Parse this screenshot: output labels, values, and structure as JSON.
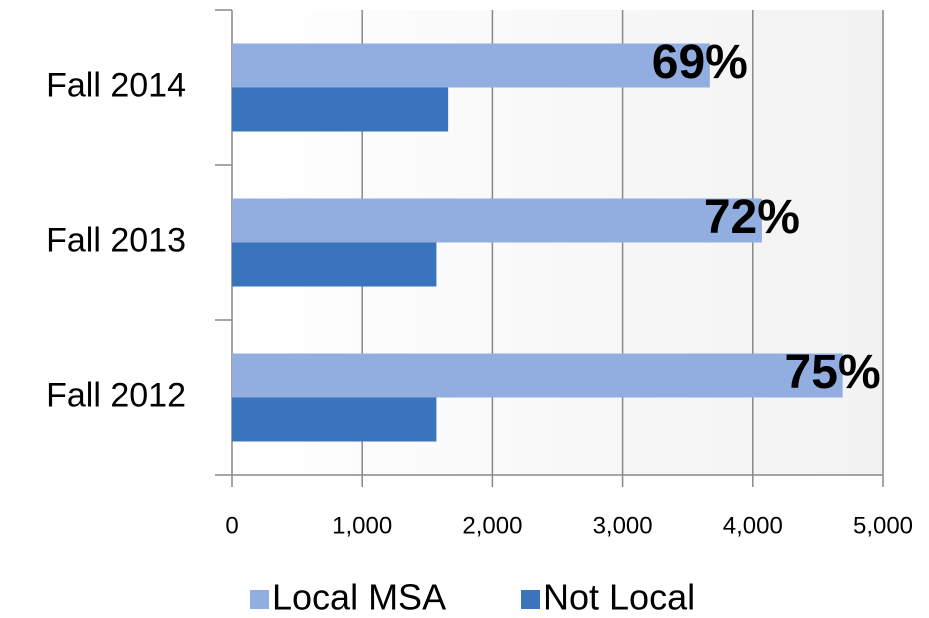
{
  "chart_data": {
    "type": "bar",
    "orientation": "horizontal",
    "categories": [
      "Fall 2014",
      "Fall 2013",
      "Fall 2012"
    ],
    "series": [
      {
        "name": "Local MSA",
        "color": "#92addf",
        "values": [
          3670,
          4070,
          4690
        ]
      },
      {
        "name": "Not Local",
        "color": "#3a74bd",
        "values": [
          1660,
          1570,
          1570
        ]
      }
    ],
    "annotations": [
      "69%",
      "72%",
      "75%"
    ],
    "xlim": [
      0,
      5000
    ],
    "xticks": [
      0,
      {
        "value": 1000,
        "label": "1,000"
      },
      {
        "value": 2000,
        "label": "2,000"
      },
      {
        "value": 3000,
        "label": "3,000"
      },
      {
        "value": 4000,
        "label": "4,000"
      },
      {
        "value": 5000,
        "label": "5,000"
      }
    ],
    "grid": true,
    "legend": "bottom"
  }
}
